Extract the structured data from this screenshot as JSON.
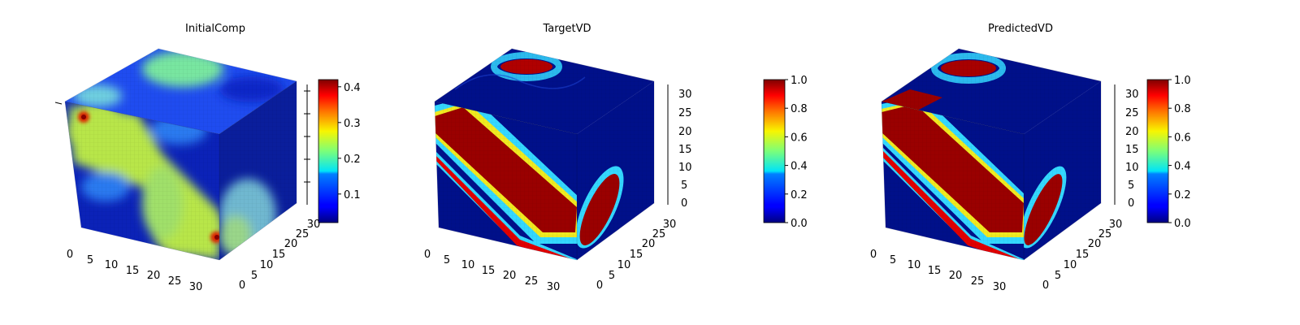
{
  "figure": {
    "panels": [
      {
        "title": "InitialComp"
      },
      {
        "title": "TargetVD"
      },
      {
        "title": "PredictedVD"
      }
    ]
  },
  "chart_data": [
    {
      "type": "voxel-3d",
      "title": "InitialComp",
      "x_ticks": [
        "0",
        "5",
        "10",
        "15",
        "20",
        "25",
        "30"
      ],
      "y_ticks": [
        "0",
        "5",
        "10",
        "15",
        "20",
        "25",
        "30"
      ],
      "z_ticks": [],
      "colorbar": {
        "min": 0.02,
        "max": 0.42,
        "ticks": [
          "0.1",
          "0.2",
          "0.3",
          "0.4"
        ],
        "tick_values": [
          0.1,
          0.2,
          0.3,
          0.4
        ],
        "colormap": "jet"
      }
    },
    {
      "type": "voxel-3d",
      "title": "TargetVD",
      "x_ticks": [
        "0",
        "5",
        "10",
        "15",
        "20",
        "25",
        "30"
      ],
      "y_ticks": [
        "0",
        "5",
        "10",
        "15",
        "20",
        "25",
        "30"
      ],
      "z_ticks": [
        "0",
        "5",
        "10",
        "15",
        "20",
        "25",
        "30"
      ],
      "colorbar": {
        "min": 0.0,
        "max": 1.0,
        "ticks": [
          "0.0",
          "0.2",
          "0.4",
          "0.6",
          "0.8",
          "1.0"
        ],
        "tick_values": [
          0,
          0.2,
          0.4,
          0.6,
          0.8,
          1.0
        ],
        "colormap": "jet"
      }
    },
    {
      "type": "voxel-3d",
      "title": "PredictedVD",
      "x_ticks": [
        "0",
        "5",
        "10",
        "15",
        "20",
        "25",
        "30"
      ],
      "y_ticks": [
        "0",
        "5",
        "10",
        "15",
        "20",
        "25",
        "30"
      ],
      "z_ticks": [
        "0",
        "5",
        "10",
        "15",
        "20",
        "25",
        "30"
      ],
      "colorbar": {
        "min": 0.0,
        "max": 1.0,
        "ticks": [
          "0.0",
          "0.2",
          "0.4",
          "0.6",
          "0.8",
          "1.0"
        ],
        "tick_values": [
          0,
          0.2,
          0.4,
          0.6,
          0.8,
          1.0
        ],
        "colormap": "jet"
      }
    }
  ]
}
